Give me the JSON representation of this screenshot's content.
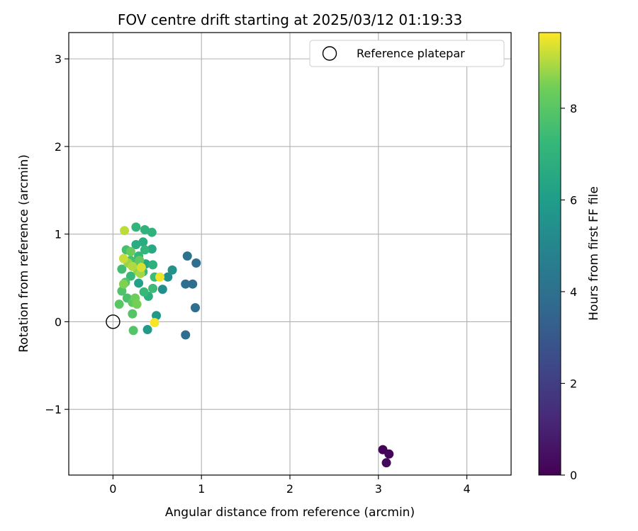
{
  "chart_data": {
    "type": "scatter",
    "title": "FOV centre drift starting at 2025/03/12 01:19:33",
    "xlabel": "Angular distance from reference (arcmin)",
    "ylabel": "Rotation from reference (arcmin)",
    "xlim": [
      -0.5,
      4.5
    ],
    "ylim": [
      -1.75,
      3.3
    ],
    "xticks": [
      0,
      1,
      2,
      3,
      4
    ],
    "xtick_labels": [
      "0",
      "1",
      "2",
      "3",
      "4"
    ],
    "yticks": [
      -1,
      0,
      1,
      2,
      3
    ],
    "ytick_labels": [
      "−1",
      "0",
      "1",
      "2",
      "3"
    ],
    "grid": true,
    "legend": {
      "position": "top-right",
      "entries": [
        {
          "label": "Reference platepar",
          "marker": "open-circle"
        }
      ]
    },
    "reference_point": {
      "x": 0,
      "y": 0
    },
    "colorbar": {
      "label": "Hours from first FF file",
      "colormap": "viridis",
      "range": [
        0,
        9.65
      ],
      "ticks": [
        0,
        2,
        4,
        6,
        8
      ],
      "tick_labels": [
        "0",
        "2",
        "4",
        "6",
        "8"
      ]
    },
    "points": [
      {
        "x": 3.05,
        "y": -1.46,
        "c": 0.1
      },
      {
        "x": 3.12,
        "y": -1.51,
        "c": 0.15
      },
      {
        "x": 3.09,
        "y": -1.61,
        "c": 0.2
      },
      {
        "x": 0.82,
        "y": -0.15,
        "c": 3.9
      },
      {
        "x": 0.93,
        "y": 0.16,
        "c": 3.9
      },
      {
        "x": 0.9,
        "y": 0.43,
        "c": 3.9
      },
      {
        "x": 0.82,
        "y": 0.43,
        "c": 4.0
      },
      {
        "x": 0.94,
        "y": 0.67,
        "c": 4.0
      },
      {
        "x": 0.84,
        "y": 0.75,
        "c": 4.1
      },
      {
        "x": 0.56,
        "y": 0.37,
        "c": 5.4
      },
      {
        "x": 0.62,
        "y": 0.51,
        "c": 5.4
      },
      {
        "x": 0.67,
        "y": 0.59,
        "c": 5.5
      },
      {
        "x": 0.49,
        "y": 0.07,
        "c": 5.8
      },
      {
        "x": 0.39,
        "y": -0.09,
        "c": 5.9
      },
      {
        "x": 0.29,
        "y": 0.44,
        "c": 6.2
      },
      {
        "x": 0.37,
        "y": 0.66,
        "c": 6.4
      },
      {
        "x": 0.44,
        "y": 0.83,
        "c": 6.5
      },
      {
        "x": 0.26,
        "y": 0.88,
        "c": 6.6
      },
      {
        "x": 0.34,
        "y": 0.91,
        "c": 6.7
      },
      {
        "x": 0.4,
        "y": 0.29,
        "c": 6.8
      },
      {
        "x": 0.45,
        "y": 0.65,
        "c": 6.9
      },
      {
        "x": 0.44,
        "y": 1.02,
        "c": 7.0
      },
      {
        "x": 0.36,
        "y": 1.05,
        "c": 7.0
      },
      {
        "x": 0.26,
        "y": 1.08,
        "c": 7.1
      },
      {
        "x": 0.36,
        "y": 0.82,
        "c": 7.1
      },
      {
        "x": 0.29,
        "y": 0.75,
        "c": 7.2
      },
      {
        "x": 0.34,
        "y": 0.57,
        "c": 7.2
      },
      {
        "x": 0.2,
        "y": 0.52,
        "c": 7.3
      },
      {
        "x": 0.35,
        "y": 0.34,
        "c": 7.3
      },
      {
        "x": 0.45,
        "y": 0.38,
        "c": 7.4
      },
      {
        "x": 0.47,
        "y": 0.51,
        "c": 7.4
      },
      {
        "x": 0.1,
        "y": 0.6,
        "c": 7.5
      },
      {
        "x": 0.15,
        "y": 0.82,
        "c": 7.6
      },
      {
        "x": 0.2,
        "y": 0.7,
        "c": 7.6
      },
      {
        "x": 0.24,
        "y": 0.63,
        "c": 7.7
      },
      {
        "x": 0.16,
        "y": 0.27,
        "c": 7.7
      },
      {
        "x": 0.14,
        "y": 0.45,
        "c": 7.8
      },
      {
        "x": 0.1,
        "y": 0.35,
        "c": 7.8
      },
      {
        "x": 0.22,
        "y": 0.09,
        "c": 7.9
      },
      {
        "x": 0.23,
        "y": -0.1,
        "c": 7.9
      },
      {
        "x": 0.07,
        "y": 0.2,
        "c": 8.0
      },
      {
        "x": 0.22,
        "y": 0.22,
        "c": 8.1
      },
      {
        "x": 0.3,
        "y": 0.7,
        "c": 8.2
      },
      {
        "x": 0.2,
        "y": 0.8,
        "c": 8.3
      },
      {
        "x": 0.25,
        "y": 0.27,
        "c": 8.4
      },
      {
        "x": 0.27,
        "y": 0.2,
        "c": 8.5
      },
      {
        "x": 0.12,
        "y": 0.43,
        "c": 8.6
      },
      {
        "x": 0.28,
        "y": 0.58,
        "c": 8.7
      },
      {
        "x": 0.17,
        "y": 0.67,
        "c": 8.8
      },
      {
        "x": 0.31,
        "y": 0.55,
        "c": 8.9
      },
      {
        "x": 0.22,
        "y": 0.63,
        "c": 9.0
      },
      {
        "x": 0.13,
        "y": 1.04,
        "c": 9.1
      },
      {
        "x": 0.12,
        "y": 0.72,
        "c": 9.2
      },
      {
        "x": 0.32,
        "y": 0.62,
        "c": 9.3
      },
      {
        "x": 0.53,
        "y": 0.51,
        "c": 9.5
      },
      {
        "x": 0.47,
        "y": -0.01,
        "c": 9.6
      }
    ]
  }
}
